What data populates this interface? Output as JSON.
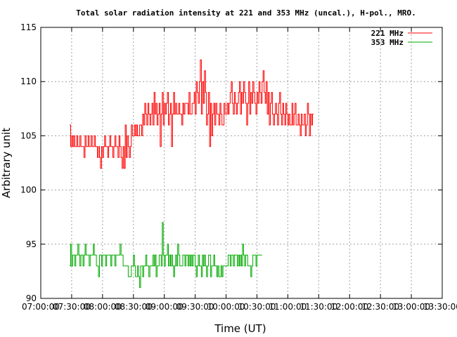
{
  "chart_data": {
    "type": "line",
    "title": "Total solar radiation intensity at 221 and 353 MHz (uncal.), H-pol., MRO.",
    "xlabel": "Time (UT)",
    "ylabel": "Arbitrary unit",
    "ylim": [
      90,
      115
    ],
    "xlim": [
      "07:00:00",
      "13:30:00"
    ],
    "yticks": [
      "90",
      "95",
      "100",
      "105",
      "110",
      "115"
    ],
    "xticks": [
      "07:00:00",
      "07:30:00",
      "08:00:00",
      "08:30:00",
      "09:00:00",
      "09:30:00",
      "10:00:00",
      "10:30:00",
      "11:00:00",
      "11:30:00",
      "12:00:00",
      "12:30:00",
      "13:00:00",
      "13:30:00"
    ],
    "grid": true,
    "legend_position": "top-right",
    "step_minutes": 1,
    "series": [
      {
        "name": "221 MHz",
        "color": "#ff0000",
        "start_time": "07:28",
        "values": [
          106,
          104,
          105,
          104,
          105,
          104,
          104,
          105,
          104,
          104,
          105,
          104,
          104,
          104,
          103,
          105,
          104,
          104,
          105,
          104,
          104,
          105,
          104,
          104,
          105,
          104,
          104,
          103,
          104,
          103,
          102,
          104,
          103,
          104,
          105,
          104,
          104,
          103,
          104,
          105,
          104,
          104,
          103,
          104,
          105,
          104,
          104,
          103,
          105,
          104,
          103,
          102,
          104,
          102,
          106,
          103,
          105,
          104,
          103,
          104,
          106,
          105,
          105,
          106,
          105,
          106,
          105,
          105,
          106,
          106,
          105,
          107,
          106,
          108,
          107,
          106,
          108,
          107,
          106,
          107,
          108,
          106,
          109,
          107,
          108,
          106,
          107,
          108,
          104,
          107,
          109,
          106,
          108,
          107,
          108,
          109,
          106,
          107,
          108,
          104,
          107,
          109,
          107,
          108,
          107,
          107,
          108,
          107,
          107,
          106,
          108,
          107,
          108,
          108,
          108,
          107,
          109,
          107,
          107,
          108,
          108,
          109,
          107,
          110,
          109,
          108,
          110,
          112,
          107,
          110,
          108,
          111,
          109,
          106,
          107,
          109,
          104,
          108,
          105,
          107,
          108,
          106,
          108,
          107,
          107,
          106,
          108,
          107,
          106,
          106,
          108,
          107,
          107,
          108,
          107,
          108,
          109,
          110,
          108,
          107,
          109,
          108,
          107,
          108,
          109,
          110,
          107,
          109,
          108,
          110,
          109,
          108,
          106,
          108,
          110,
          107,
          109,
          108,
          110,
          109,
          108,
          107,
          109,
          108,
          110,
          109,
          108,
          110,
          111,
          109,
          108,
          110,
          107,
          109,
          106,
          108,
          109,
          107,
          106,
          107,
          108,
          107,
          106,
          108,
          109,
          107,
          106,
          108,
          107,
          106,
          108,
          107,
          106,
          107,
          106,
          106,
          108,
          106,
          107,
          108,
          106,
          106,
          107,
          106,
          105,
          107,
          106,
          106,
          107,
          105,
          106,
          108,
          107,
          105,
          107,
          106,
          107,
          107
        ]
      },
      {
        "name": "353 MHz",
        "color": "#00aa00",
        "start_time": "07:28",
        "values": [
          93,
          95,
          93,
          94,
          94,
          93,
          94,
          94,
          95,
          94,
          93,
          94,
          94,
          93,
          94,
          95,
          94,
          94,
          94,
          93,
          94,
          94,
          94,
          95,
          94,
          94,
          93,
          93,
          92,
          94,
          94,
          93,
          94,
          94,
          94,
          93,
          94,
          94,
          94,
          94,
          93,
          94,
          94,
          94,
          93,
          94,
          94,
          94,
          94,
          95,
          94,
          94,
          93,
          93,
          93,
          93,
          93,
          92,
          92,
          92,
          93,
          93,
          94,
          93,
          92,
          92,
          93,
          92,
          91,
          93,
          93,
          92,
          93,
          93,
          94,
          93,
          93,
          92,
          93,
          93,
          93,
          94,
          93,
          94,
          92,
          93,
          93,
          94,
          94,
          93,
          97,
          94,
          93,
          94,
          94,
          95,
          93,
          94,
          93,
          94,
          93,
          92,
          93,
          94,
          93,
          95,
          94,
          93,
          93,
          93,
          94,
          94,
          93,
          94,
          94,
          93,
          94,
          93,
          94,
          93,
          94,
          94,
          93,
          92,
          93,
          94,
          93,
          93,
          92,
          94,
          93,
          94,
          93,
          92,
          93,
          94,
          94,
          92,
          93,
          93,
          94,
          93,
          93,
          92,
          93,
          92,
          92,
          93,
          92,
          93,
          93,
          93,
          93,
          93,
          94,
          94,
          93,
          94,
          94,
          93,
          94,
          94,
          94,
          93,
          94,
          93,
          94,
          93,
          95,
          94,
          93,
          94,
          94,
          93,
          93,
          93,
          92,
          93,
          94,
          94,
          94,
          93,
          94,
          94,
          94,
          94,
          94,
          94
        ]
      }
    ]
  }
}
